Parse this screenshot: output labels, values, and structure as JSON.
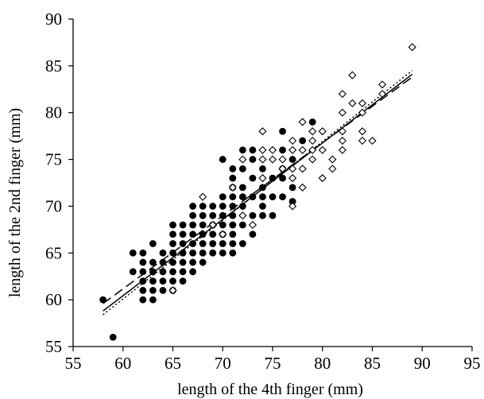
{
  "chart_data": {
    "type": "scatter",
    "title": "",
    "xlabel": "length of the 4th finger (mm)",
    "ylabel": "length of the 2nd finger (mm)",
    "xlim": [
      55,
      95
    ],
    "ylim": [
      55,
      90
    ],
    "xticks": [
      "55",
      "60",
      "65",
      "70",
      "75",
      "80",
      "85",
      "90",
      "95"
    ],
    "yticks": [
      "55",
      "60",
      "65",
      "70",
      "75",
      "80",
      "85",
      "90"
    ],
    "grid": false,
    "legend": "none",
    "series": [
      {
        "marker": "filled-circle",
        "color": "#000000",
        "points": [
          [
            58,
            60
          ],
          [
            59,
            56
          ],
          [
            61,
            63
          ],
          [
            61,
            65
          ],
          [
            62,
            60
          ],
          [
            62,
            61
          ],
          [
            62,
            62
          ],
          [
            62,
            63
          ],
          [
            62,
            64
          ],
          [
            62,
            65
          ],
          [
            63,
            60
          ],
          [
            63,
            61
          ],
          [
            63,
            62
          ],
          [
            63,
            63
          ],
          [
            63,
            64
          ],
          [
            63,
            66
          ],
          [
            64,
            61
          ],
          [
            64,
            62
          ],
          [
            64,
            63
          ],
          [
            64,
            64
          ],
          [
            64,
            65
          ],
          [
            65,
            61
          ],
          [
            65,
            62
          ],
          [
            65,
            63
          ],
          [
            65,
            64
          ],
          [
            65,
            65
          ],
          [
            65,
            66
          ],
          [
            65,
            67
          ],
          [
            65,
            68
          ],
          [
            66,
            62
          ],
          [
            66,
            63
          ],
          [
            66,
            64
          ],
          [
            66,
            65
          ],
          [
            66,
            66
          ],
          [
            66,
            67
          ],
          [
            66,
            68
          ],
          [
            67,
            63
          ],
          [
            67,
            64
          ],
          [
            67,
            65
          ],
          [
            67,
            66
          ],
          [
            67,
            67
          ],
          [
            67,
            68
          ],
          [
            67,
            69
          ],
          [
            67,
            70
          ],
          [
            68,
            64
          ],
          [
            68,
            65
          ],
          [
            68,
            66
          ],
          [
            68,
            67
          ],
          [
            68,
            68
          ],
          [
            68,
            69
          ],
          [
            68,
            70
          ],
          [
            69,
            65
          ],
          [
            69,
            66
          ],
          [
            69,
            67
          ],
          [
            69,
            68
          ],
          [
            69,
            69
          ],
          [
            69,
            70
          ],
          [
            70,
            65
          ],
          [
            70,
            66
          ],
          [
            70,
            67
          ],
          [
            70,
            68
          ],
          [
            70,
            69
          ],
          [
            70,
            70
          ],
          [
            70,
            71
          ],
          [
            70,
            75
          ],
          [
            71,
            65
          ],
          [
            71,
            66
          ],
          [
            71,
            67
          ],
          [
            71,
            68
          ],
          [
            71,
            69
          ],
          [
            71,
            70
          ],
          [
            71,
            71
          ],
          [
            71,
            72
          ],
          [
            71,
            73
          ],
          [
            71,
            74
          ],
          [
            72,
            66
          ],
          [
            72,
            68
          ],
          [
            72,
            70
          ],
          [
            72,
            71
          ],
          [
            72,
            72
          ],
          [
            72,
            74
          ],
          [
            72,
            76
          ],
          [
            73,
            67
          ],
          [
            73,
            69
          ],
          [
            73,
            71
          ],
          [
            73,
            73
          ],
          [
            73,
            75
          ],
          [
            73,
            76
          ],
          [
            74,
            69
          ],
          [
            74,
            70
          ],
          [
            74,
            71
          ],
          [
            74,
            72
          ],
          [
            74,
            74
          ],
          [
            75,
            69
          ],
          [
            75,
            71
          ],
          [
            75,
            73
          ],
          [
            76,
            71
          ],
          [
            76,
            73
          ],
          [
            76,
            74
          ],
          [
            76,
            76
          ],
          [
            76,
            78
          ],
          [
            77,
            70.5
          ],
          [
            77,
            72
          ],
          [
            77,
            75
          ],
          [
            78,
            77
          ],
          [
            79,
            79
          ]
        ]
      },
      {
        "marker": "open-diamond",
        "color": "#000000",
        "points": [
          [
            65,
            61
          ],
          [
            68,
            71
          ],
          [
            69,
            68
          ],
          [
            70,
            67
          ],
          [
            71,
            72
          ],
          [
            72,
            69
          ],
          [
            72,
            75
          ],
          [
            73,
            68
          ],
          [
            74,
            73
          ],
          [
            74,
            75
          ],
          [
            74,
            76
          ],
          [
            74,
            78
          ],
          [
            75,
            75
          ],
          [
            75,
            76
          ],
          [
            76,
            74
          ],
          [
            76,
            75
          ],
          [
            77,
            70
          ],
          [
            77,
            73
          ],
          [
            77,
            74
          ],
          [
            77,
            76
          ],
          [
            77,
            77
          ],
          [
            78,
            72
          ],
          [
            78,
            74
          ],
          [
            78,
            76
          ],
          [
            78,
            79
          ],
          [
            79,
            75
          ],
          [
            79,
            76
          ],
          [
            79,
            77
          ],
          [
            79,
            78
          ],
          [
            80,
            73
          ],
          [
            80,
            76
          ],
          [
            80,
            78
          ],
          [
            81,
            74
          ],
          [
            81,
            75
          ],
          [
            82,
            76
          ],
          [
            82,
            77
          ],
          [
            82,
            78
          ],
          [
            82,
            80
          ],
          [
            82,
            82
          ],
          [
            83,
            81
          ],
          [
            83,
            84
          ],
          [
            84,
            77
          ],
          [
            84,
            78
          ],
          [
            84,
            80
          ],
          [
            84,
            81
          ],
          [
            85,
            77
          ],
          [
            86,
            82
          ],
          [
            86,
            83
          ],
          [
            89,
            87
          ]
        ]
      }
    ],
    "lines": [
      {
        "style": "solid",
        "from": [
          58,
          58.8
        ],
        "to": [
          89,
          84.1
        ]
      },
      {
        "style": "dashed",
        "from": [
          58,
          59.6
        ],
        "to": [
          89,
          83.8
        ]
      },
      {
        "style": "dotted",
        "from": [
          58,
          58.4
        ],
        "to": [
          89,
          84.5
        ]
      }
    ]
  }
}
